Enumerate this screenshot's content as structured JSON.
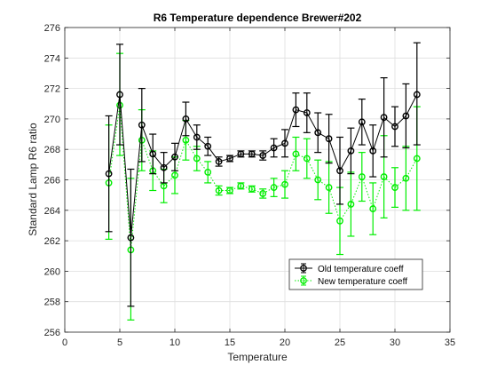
{
  "chart_data": {
    "type": "scatter",
    "title": "R6 Temperature dependence Brewer#202",
    "xlabel": "Temperature",
    "ylabel": "Standard Lamp R6 ratio",
    "xlim": [
      0,
      35
    ],
    "ylim": [
      256,
      276
    ],
    "xticks": [
      "0",
      "5",
      "10",
      "15",
      "20",
      "25",
      "30",
      "35"
    ],
    "yticks": [
      "256",
      "258",
      "260",
      "262",
      "264",
      "266",
      "268",
      "270",
      "272",
      "274",
      "276"
    ],
    "grid": true,
    "legend_position": "bottom-right",
    "series": [
      {
        "name": "Old temperature coeff",
        "color": "#000000",
        "line_style": "solid",
        "marker": "circle",
        "error_bars": true,
        "points": [
          {
            "x": 4,
            "y": 266.4,
            "lo": 262.6,
            "hi": 270.2
          },
          {
            "x": 5,
            "y": 271.6,
            "lo": 268.3,
            "hi": 274.9
          },
          {
            "x": 6,
            "y": 262.2,
            "lo": 257.7,
            "hi": 266.7
          },
          {
            "x": 7,
            "y": 269.6,
            "lo": 267.2,
            "hi": 272.0
          },
          {
            "x": 8,
            "y": 267.7,
            "lo": 266.4,
            "hi": 269.0
          },
          {
            "x": 9,
            "y": 266.8,
            "lo": 265.8,
            "hi": 267.8
          },
          {
            "x": 10,
            "y": 267.5,
            "lo": 266.6,
            "hi": 268.4
          },
          {
            "x": 11,
            "y": 270.0,
            "lo": 268.9,
            "hi": 271.1
          },
          {
            "x": 12,
            "y": 268.8,
            "lo": 268.0,
            "hi": 269.6
          },
          {
            "x": 13,
            "y": 268.2,
            "lo": 267.6,
            "hi": 268.8
          },
          {
            "x": 14,
            "y": 267.2,
            "lo": 266.9,
            "hi": 267.5
          },
          {
            "x": 15,
            "y": 267.4,
            "lo": 267.2,
            "hi": 267.6
          },
          {
            "x": 16,
            "y": 267.7,
            "lo": 267.5,
            "hi": 267.9
          },
          {
            "x": 17,
            "y": 267.7,
            "lo": 267.5,
            "hi": 267.9
          },
          {
            "x": 18,
            "y": 267.6,
            "lo": 267.3,
            "hi": 267.9
          },
          {
            "x": 19,
            "y": 268.1,
            "lo": 267.5,
            "hi": 268.7
          },
          {
            "x": 20,
            "y": 268.4,
            "lo": 267.5,
            "hi": 269.3
          },
          {
            "x": 21,
            "y": 270.6,
            "lo": 269.5,
            "hi": 271.7
          },
          {
            "x": 22,
            "y": 270.4,
            "lo": 269.1,
            "hi": 271.7
          },
          {
            "x": 23,
            "y": 269.1,
            "lo": 267.8,
            "hi": 270.4
          },
          {
            "x": 24,
            "y": 268.7,
            "lo": 267.1,
            "hi": 270.3
          },
          {
            "x": 25,
            "y": 266.6,
            "lo": 264.4,
            "hi": 268.8
          },
          {
            "x": 26,
            "y": 267.9,
            "lo": 266.4,
            "hi": 269.4
          },
          {
            "x": 27,
            "y": 269.8,
            "lo": 268.3,
            "hi": 271.3
          },
          {
            "x": 28,
            "y": 267.9,
            "lo": 266.2,
            "hi": 269.6
          },
          {
            "x": 29,
            "y": 270.1,
            "lo": 267.5,
            "hi": 272.7
          },
          {
            "x": 30,
            "y": 269.5,
            "lo": 268.2,
            "hi": 270.8
          },
          {
            "x": 31,
            "y": 270.2,
            "lo": 268.1,
            "hi": 272.3
          },
          {
            "x": 32,
            "y": 271.6,
            "lo": 268.3,
            "hi": 275.0
          }
        ]
      },
      {
        "name": "New temperature coeff",
        "color": "#00ee00",
        "line_style": "dotted",
        "marker": "circle",
        "error_bars": true,
        "points": [
          {
            "x": 4,
            "y": 265.8,
            "lo": 262.1,
            "hi": 269.6
          },
          {
            "x": 5,
            "y": 270.9,
            "lo": 267.6,
            "hi": 274.3
          },
          {
            "x": 6,
            "y": 261.4,
            "lo": 256.8,
            "hi": 266.1
          },
          {
            "x": 7,
            "y": 268.6,
            "lo": 266.6,
            "hi": 270.6
          },
          {
            "x": 8,
            "y": 266.6,
            "lo": 265.3,
            "hi": 267.9
          },
          {
            "x": 9,
            "y": 265.6,
            "lo": 264.5,
            "hi": 266.7
          },
          {
            "x": 10,
            "y": 266.3,
            "lo": 265.1,
            "hi": 267.5
          },
          {
            "x": 11,
            "y": 268.6,
            "lo": 267.3,
            "hi": 269.9
          },
          {
            "x": 12,
            "y": 267.4,
            "lo": 266.6,
            "hi": 268.2
          },
          {
            "x": 13,
            "y": 266.5,
            "lo": 265.8,
            "hi": 267.2
          },
          {
            "x": 14,
            "y": 265.3,
            "lo": 265.0,
            "hi": 265.6
          },
          {
            "x": 15,
            "y": 265.3,
            "lo": 265.1,
            "hi": 265.5
          },
          {
            "x": 16,
            "y": 265.6,
            "lo": 265.4,
            "hi": 265.8
          },
          {
            "x": 17,
            "y": 265.4,
            "lo": 265.2,
            "hi": 265.6
          },
          {
            "x": 18,
            "y": 265.1,
            "lo": 264.8,
            "hi": 265.4
          },
          {
            "x": 19,
            "y": 265.5,
            "lo": 264.9,
            "hi": 266.1
          },
          {
            "x": 20,
            "y": 265.7,
            "lo": 264.8,
            "hi": 266.6
          },
          {
            "x": 21,
            "y": 267.7,
            "lo": 266.6,
            "hi": 268.8
          },
          {
            "x": 22,
            "y": 267.4,
            "lo": 266.1,
            "hi": 268.7
          },
          {
            "x": 23,
            "y": 266.0,
            "lo": 264.7,
            "hi": 267.3
          },
          {
            "x": 24,
            "y": 265.5,
            "lo": 263.8,
            "hi": 267.2
          },
          {
            "x": 25,
            "y": 263.3,
            "lo": 261.1,
            "hi": 265.5
          },
          {
            "x": 26,
            "y": 264.4,
            "lo": 262.3,
            "hi": 266.5
          },
          {
            "x": 27,
            "y": 266.2,
            "lo": 264.6,
            "hi": 267.8
          },
          {
            "x": 28,
            "y": 264.1,
            "lo": 262.4,
            "hi": 265.8
          },
          {
            "x": 29,
            "y": 266.2,
            "lo": 263.5,
            "hi": 268.9
          },
          {
            "x": 30,
            "y": 265.5,
            "lo": 264.2,
            "hi": 266.8
          },
          {
            "x": 31,
            "y": 266.1,
            "lo": 264.0,
            "hi": 268.2
          },
          {
            "x": 32,
            "y": 267.4,
            "lo": 264.0,
            "hi": 270.8
          }
        ]
      }
    ]
  }
}
